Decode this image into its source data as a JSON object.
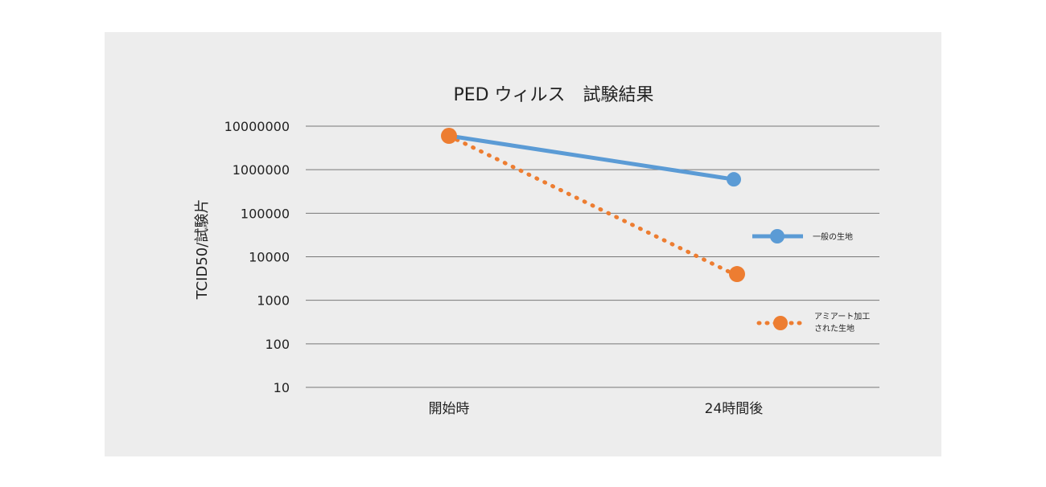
{
  "chart_data": {
    "type": "line",
    "title": "PED ウィルス　試験結果",
    "ylabel": "TCID50/試験片",
    "yscale": "log",
    "ylim": [
      10,
      10000000
    ],
    "y_ticks": [
      "10000000",
      "1000000",
      "100000",
      "10000",
      "1000",
      "100",
      "10"
    ],
    "categories": [
      "開始時",
      "24時間後"
    ],
    "grid": true,
    "legend_position": "right",
    "series": [
      {
        "name": "一般の生地",
        "values": [
          6000000,
          600000
        ],
        "color": "#5b9bd5",
        "style": "solid"
      },
      {
        "name_lines": [
          "アミアート加工",
          "された生地"
        ],
        "values": [
          6000000,
          4000
        ],
        "color": "#ed7d31",
        "style": "dotted"
      }
    ]
  }
}
